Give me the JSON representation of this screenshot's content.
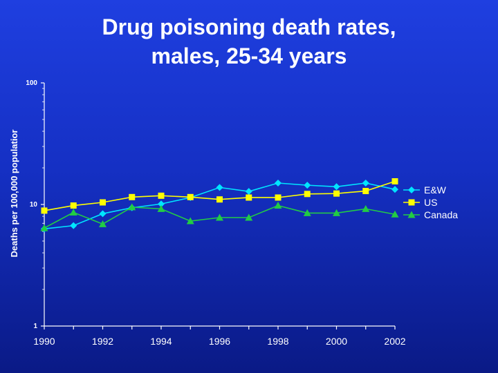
{
  "chart_data": {
    "type": "line",
    "title": [
      "Drug poisoning death rates,",
      "males, 25-34 years"
    ],
    "ylabel": "Deaths per 100,000 populatior",
    "xlabel": "",
    "yscale": "log",
    "ylim": [
      1,
      100
    ],
    "yticks": [
      "1",
      "10",
      "100"
    ],
    "xlim": [
      1990,
      2002
    ],
    "xticks": [
      "1990",
      "1992",
      "1994",
      "1996",
      "1998",
      "2000",
      "2002"
    ],
    "grid": false,
    "legend": "right",
    "x": [
      1990,
      1991,
      1992,
      1993,
      1994,
      1995,
      1996,
      1997,
      1998,
      1999,
      2000,
      2001,
      2002
    ],
    "series": [
      {
        "name": "E&W",
        "marker": "diamond",
        "color": "#00e5ff",
        "values": [
          6.3,
          6.7,
          8.4,
          9.4,
          10.1,
          11.4,
          13.8,
          12.8,
          15.0,
          14.4,
          14.0,
          15.0,
          13.3
        ]
      },
      {
        "name": "US",
        "marker": "square",
        "color": "#ffff00",
        "values": [
          8.9,
          9.8,
          10.4,
          11.5,
          11.8,
          11.5,
          11.0,
          11.4,
          11.4,
          12.2,
          12.3,
          12.9,
          15.5
        ]
      },
      {
        "name": "Canada",
        "marker": "triangle",
        "color": "#22cc44",
        "values": [
          6.4,
          8.6,
          6.9,
          9.5,
          9.2,
          7.3,
          7.8,
          7.8,
          9.8,
          8.5,
          8.5,
          9.2,
          8.3
        ]
      }
    ]
  }
}
